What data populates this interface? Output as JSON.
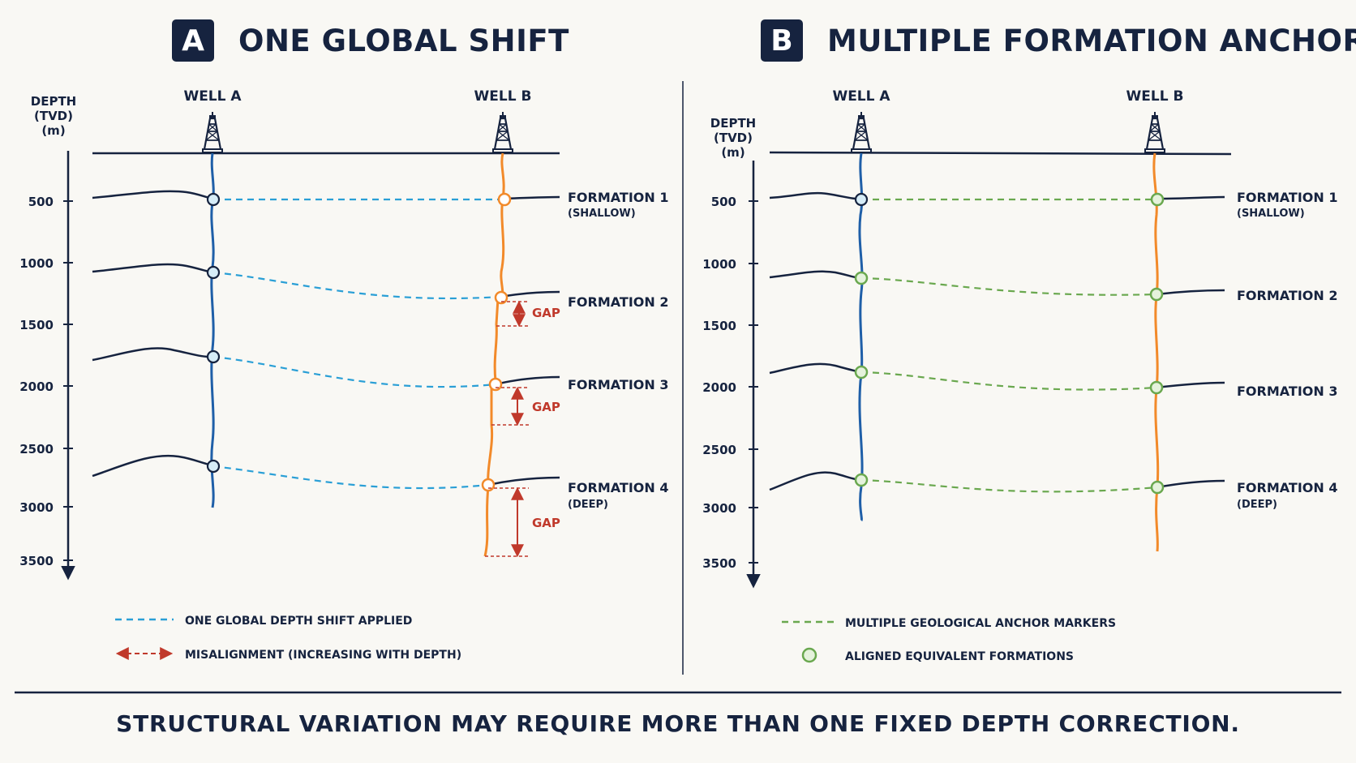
{
  "colors": {
    "navy": "#16233f",
    "well_a": "#1f5fa8",
    "well_b": "#f28a2a",
    "shift_line": "#2a9fd6",
    "gap": "#c0392b",
    "anchor": "#6aa84f",
    "background": "#f9f8f4"
  },
  "icons": [
    "oil-derrick-icon"
  ],
  "panel_a": {
    "badge": "A",
    "title": "ONE GLOBAL SHIFT",
    "depth_axis_label": [
      "DEPTH",
      "(TVD)",
      "(m)"
    ],
    "depth_ticks": [
      "500",
      "1000",
      "1500",
      "2000",
      "2500",
      "3000",
      "3500"
    ],
    "well_a_label": "WELL A",
    "well_b_label": "WELL B",
    "formations": [
      {
        "name": "FORMATION 1",
        "sub": "(SHALLOW)"
      },
      {
        "name": "FORMATION 2",
        "sub": ""
      },
      {
        "name": "FORMATION 3",
        "sub": ""
      },
      {
        "name": "FORMATION 4",
        "sub": "(DEEP)"
      }
    ],
    "gap_label": "GAP",
    "legend": [
      {
        "label": "ONE GLOBAL DEPTH SHIFT APPLIED"
      },
      {
        "label": "MISALIGNMENT (INCREASING WITH DEPTH)"
      }
    ]
  },
  "panel_b": {
    "badge": "B",
    "title": "MULTIPLE FORMATION ANCHORS",
    "depth_axis_label": [
      "DEPTH",
      "(TVD)",
      "(m)"
    ],
    "depth_ticks": [
      "500",
      "1000",
      "1500",
      "2000",
      "2500",
      "3000",
      "3500"
    ],
    "well_a_label": "WELL A",
    "well_b_label": "WELL B",
    "formations": [
      {
        "name": "FORMATION 1",
        "sub": "(SHALLOW)"
      },
      {
        "name": "FORMATION 2",
        "sub": ""
      },
      {
        "name": "FORMATION 3",
        "sub": ""
      },
      {
        "name": "FORMATION 4",
        "sub": "(DEEP)"
      }
    ],
    "legend": [
      {
        "label": "MULTIPLE GEOLOGICAL ANCHOR MARKERS"
      },
      {
        "label": "ALIGNED EQUIVALENT FORMATIONS"
      }
    ]
  },
  "footer": "STRUCTURAL VARIATION MAY REQUIRE MORE THAN ONE FIXED DEPTH CORRECTION."
}
